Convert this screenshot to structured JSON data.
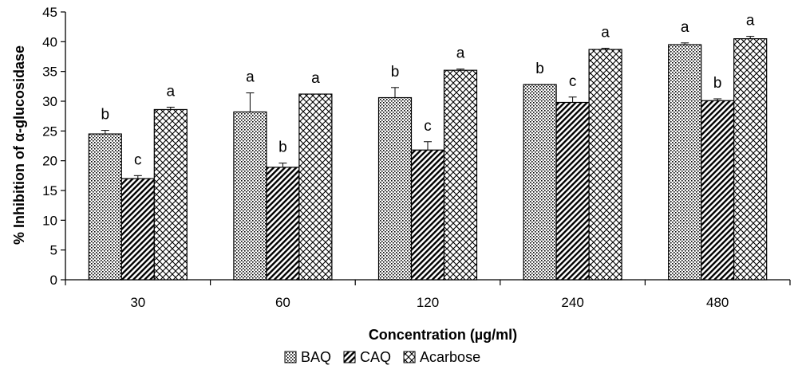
{
  "chart_data": {
    "type": "bar",
    "title": "",
    "xlabel": "Concentration (µg/ml)",
    "ylabel": "% Inhibition of α-glucosidase",
    "ylim": [
      0,
      45
    ],
    "yticks": [
      "0",
      "5",
      "10",
      "15",
      "20",
      "25",
      "30",
      "35",
      "40",
      "45"
    ],
    "categories": [
      "30",
      "60",
      "120",
      "240",
      "480"
    ],
    "legend_position": "bottom",
    "grid": false,
    "series": [
      {
        "name": "BAQ",
        "pattern": "dots",
        "values": [
          24.5,
          28.2,
          30.6,
          32.8,
          39.5
        ],
        "errors": [
          0.6,
          3.2,
          1.7,
          0.0,
          0.3
        ],
        "sig_labels": [
          "b",
          "a",
          "b",
          "b",
          "a"
        ]
      },
      {
        "name": "CAQ",
        "pattern": "diagonal",
        "values": [
          17.0,
          18.9,
          21.8,
          29.8,
          30.1
        ],
        "errors": [
          0.5,
          0.7,
          1.4,
          0.9,
          0.3
        ],
        "sig_labels": [
          "c",
          "b",
          "c",
          "c",
          "b"
        ]
      },
      {
        "name": "Acarbose",
        "pattern": "crosshatch",
        "values": [
          28.6,
          31.2,
          35.2,
          38.7,
          40.5
        ],
        "errors": [
          0.4,
          0.0,
          0.2,
          0.2,
          0.4
        ],
        "sig_labels": [
          "a",
          "a",
          "a",
          "a",
          "a"
        ]
      }
    ]
  }
}
